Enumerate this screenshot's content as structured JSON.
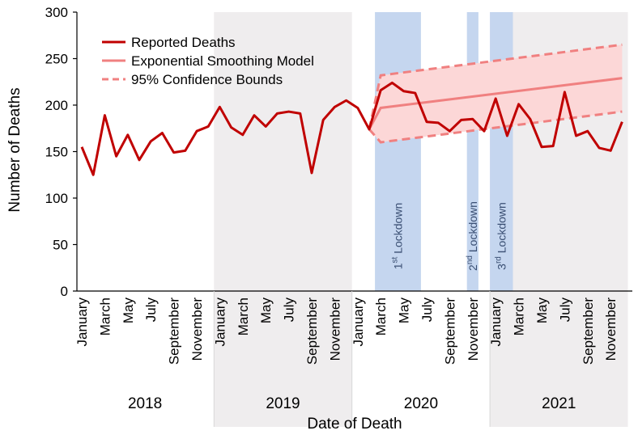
{
  "chart_data": {
    "type": "line",
    "xlabel": "Date of Death",
    "ylabel": "Number of Deaths",
    "ylim": [
      0,
      300
    ],
    "yticks": [
      0,
      50,
      100,
      150,
      200,
      250,
      300
    ],
    "month_labels": [
      "January",
      "March",
      "May",
      "July",
      "September",
      "November"
    ],
    "years": [
      "2018",
      "2019",
      "2020",
      "2021"
    ],
    "shaded_years": [
      "2019",
      "2021"
    ],
    "start_month": "January 2018",
    "legend": {
      "position": "top-left",
      "entries": [
        {
          "label": "Reported Deaths",
          "style": "solid-dark"
        },
        {
          "label": "Exponential Smoothing Model",
          "style": "solid-light"
        },
        {
          "label": "95% Confidence Bounds",
          "style": "dashed-light"
        }
      ]
    },
    "series": [
      {
        "name": "Reported Deaths",
        "color": "#c00000",
        "start_index": 0,
        "values": [
          155,
          125,
          189,
          145,
          168,
          141,
          161,
          170,
          149,
          151,
          172,
          177,
          198,
          176,
          168,
          189,
          177,
          191,
          193,
          191,
          127,
          184,
          198,
          205,
          197,
          174,
          216,
          224,
          215,
          213,
          182,
          181,
          172,
          184,
          185,
          172,
          207,
          167,
          201,
          185,
          155,
          156,
          214,
          167,
          172,
          154,
          151,
          182
        ]
      },
      {
        "name": "Exponential Smoothing Model",
        "color": "#f08080",
        "start_index": 25,
        "values": [
          174,
          197,
          229
        ]
      },
      {
        "name": "95% Confidence Bounds (upper)",
        "color": "#f08080",
        "start_index": 25,
        "values": [
          174,
          232,
          265
        ]
      },
      {
        "name": "95% Confidence Bounds (lower)",
        "color": "#f08080",
        "start_index": 25,
        "values": [
          174,
          160,
          193
        ]
      }
    ],
    "lockdowns": [
      {
        "number": "1",
        "suffix": "st",
        "text": " Lockdown",
        "start_month": "March 2020",
        "end_month": "June 2020"
      },
      {
        "number": "2",
        "suffix": "nd",
        "text": " Lockdown",
        "start_month": "November 2020",
        "end_month": "November 2020"
      },
      {
        "number": "3",
        "suffix": "rd",
        "text": " Lockdown",
        "start_month": "January 2021",
        "end_month": "February 2021"
      }
    ],
    "colors": {
      "year_shade": "#efedee",
      "lockdown_shade": "#c5d6ef",
      "band_fill": "#fcd7d7",
      "axis": "#000000"
    }
  }
}
